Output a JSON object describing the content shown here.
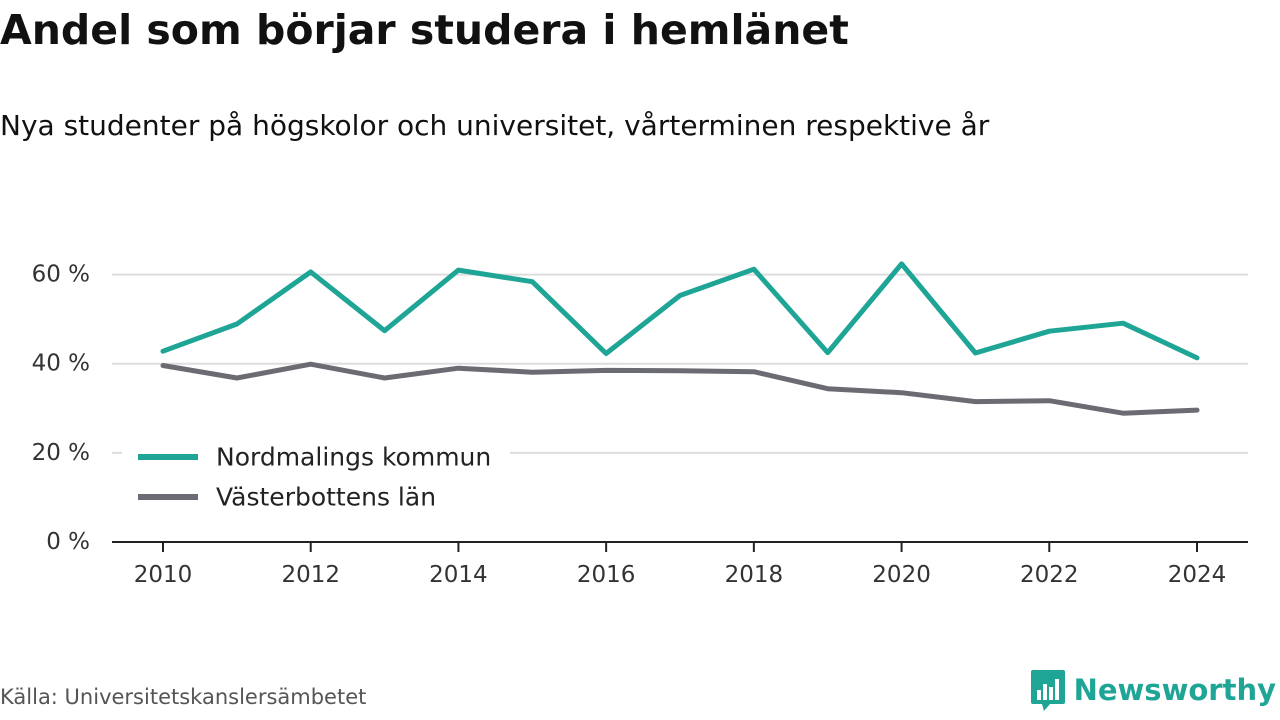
{
  "header": {
    "title": "Andel som börjar studera i hemlänet",
    "subtitle": "Nya studenter på högskolor och universitet, vårterminen respektive år"
  },
  "footer": {
    "source": "Källa: Universitetskanslersämbetet",
    "brand": "Newsworthy",
    "brand_icon": "bar-chart-speech-bubble-icon"
  },
  "chart_data": {
    "type": "line",
    "x": [
      2010,
      2011,
      2012,
      2013,
      2014,
      2015,
      2016,
      2017,
      2018,
      2019,
      2020,
      2021,
      2022,
      2023,
      2024
    ],
    "x_ticks": [
      "2010",
      "2012",
      "2014",
      "2016",
      "2018",
      "2020",
      "2022",
      "2024"
    ],
    "y_ticks": [
      "0 %",
      "20 %",
      "40 %",
      "60 %"
    ],
    "ylim": [
      0,
      70
    ],
    "grid": "horizontal",
    "legend_position": "bottom-left",
    "series": [
      {
        "name": "Nordmalings kommun",
        "color": "#1fa596",
        "values": [
          42.8,
          48.9,
          60.6,
          47.4,
          61.0,
          58.4,
          42.3,
          55.3,
          61.2,
          42.5,
          62.4,
          42.4,
          47.3,
          49.1,
          41.3
        ]
      },
      {
        "name": "Västerbottens län",
        "color": "#6b6b73",
        "values": [
          39.6,
          36.8,
          39.9,
          36.8,
          39.0,
          38.1,
          38.5,
          38.4,
          38.2,
          34.4,
          33.5,
          31.5,
          31.7,
          28.9,
          29.6
        ]
      }
    ]
  }
}
